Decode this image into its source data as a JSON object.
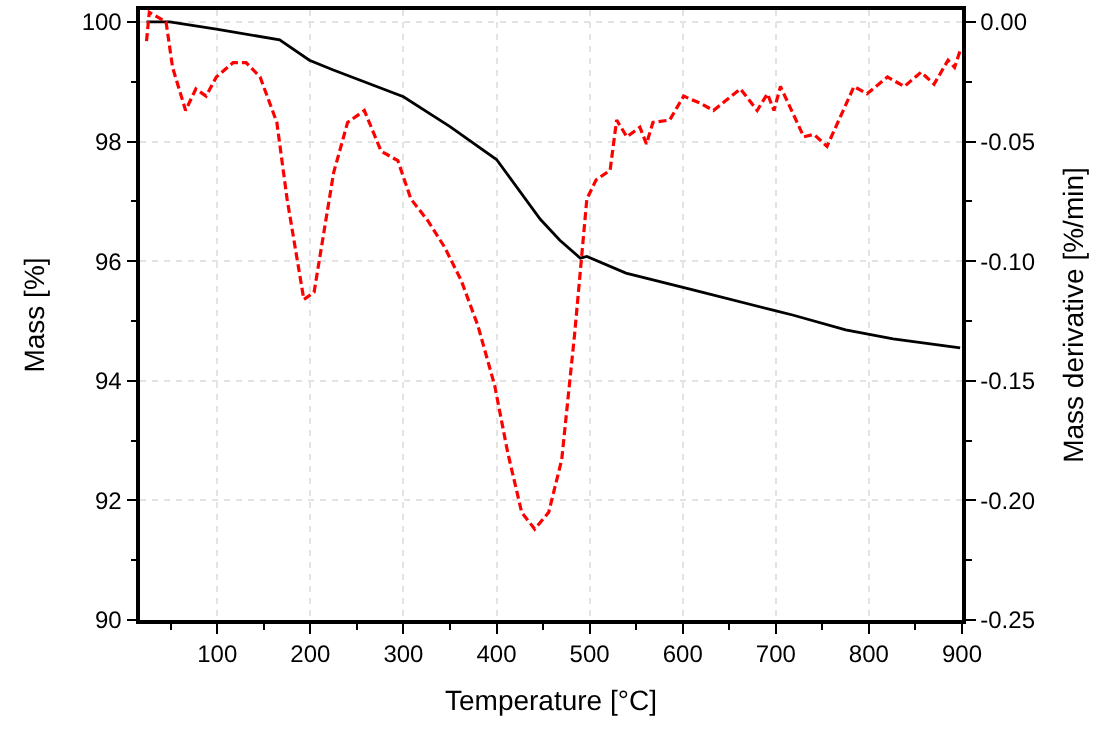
{
  "chart_data": {
    "type": "line",
    "xlabel": "Temperature [°C]",
    "ylabel": "Mass [%]",
    "y2label": "Mass derivative [%/min]",
    "xlim": [
      17,
      900
    ],
    "xticks": [
      {
        "value": 50,
        "label": null
      },
      100,
      {
        "value": 150,
        "label": null
      },
      200,
      {
        "value": 250,
        "label": null
      },
      300,
      {
        "value": 350,
        "label": null
      },
      400,
      {
        "value": 450,
        "label": null
      },
      500,
      {
        "value": 550,
        "label": null
      },
      600,
      {
        "value": 650,
        "label": null
      },
      700,
      {
        "value": 750,
        "label": null
      },
      800,
      {
        "value": 850,
        "label": null
      },
      900
    ],
    "ylim": [
      90,
      100.2
    ],
    "yticks": [
      90,
      {
        "value": 91,
        "label": null
      },
      92,
      {
        "value": 93,
        "label": null
      },
      94,
      {
        "value": 95,
        "label": null
      },
      96,
      {
        "value": 97,
        "label": null
      },
      98,
      {
        "value": 99,
        "label": null
      },
      100
    ],
    "y2lim": [
      -0.25,
      0.005
    ],
    "y2ticks": [
      {
        "value": -0.25,
        "label": "-0.25"
      },
      {
        "value": -0.225,
        "label": null
      },
      {
        "value": -0.2,
        "label": "-0.20"
      },
      {
        "value": -0.175,
        "label": null
      },
      {
        "value": -0.15,
        "label": "-0.15"
      },
      {
        "value": -0.125,
        "label": null
      },
      {
        "value": -0.1,
        "label": "-0.10"
      },
      {
        "value": -0.075,
        "label": null
      },
      {
        "value": -0.05,
        "label": "-0.05"
      },
      {
        "value": -0.025,
        "label": null
      },
      {
        "value": 0,
        "label": "0.00"
      }
    ],
    "grid": true,
    "marker": "none",
    "series": [
      {
        "color": "#000000",
        "line_style": "solid",
        "x": [
          24,
          49,
          99,
          167,
          199,
          224,
          300,
          350,
          400,
          447,
          468,
          490,
          497,
          539,
          611,
          697,
          718,
          775,
          826,
          898
        ],
        "values": [
          100,
          100,
          99.88,
          99.7,
          99.36,
          99.2,
          98.75,
          98.25,
          97.7,
          96.7,
          96.35,
          96.05,
          96.08,
          95.8,
          95.52,
          95.18,
          95.1,
          94.85,
          94.7,
          94.55
        ]
      },
      {
        "color": "#ff0000",
        "line_style": "dashed",
        "axis": "y2",
        "x": [
          24,
          27,
          45,
          52,
          66,
          77,
          88,
          99,
          117,
          131,
          146,
          164,
          175,
          193,
          204,
          225,
          240,
          258,
          276,
          294,
          308,
          326,
          344,
          362,
          380,
          398,
          412,
          427,
          441,
          456,
          470,
          484,
          497,
          507,
          522,
          529,
          540,
          554,
          561,
          568,
          586,
          601,
          619,
          633,
          662,
          680,
          691,
          698,
          705,
          730,
          741,
          755,
          784,
          798,
          820,
          838,
          856,
          870,
          885,
          892,
          898
        ],
        "values": [
          -0.008,
          0.004,
          0.0,
          -0.019,
          -0.037,
          -0.028,
          -0.031,
          -0.023,
          -0.017,
          -0.017,
          -0.023,
          -0.042,
          -0.074,
          -0.116,
          -0.113,
          -0.063,
          -0.042,
          -0.037,
          -0.054,
          -0.058,
          -0.074,
          -0.083,
          -0.094,
          -0.108,
          -0.127,
          -0.152,
          -0.18,
          -0.205,
          -0.212,
          -0.205,
          -0.183,
          -0.13,
          -0.074,
          -0.066,
          -0.062,
          -0.041,
          -0.048,
          -0.044,
          -0.051,
          -0.042,
          -0.041,
          -0.031,
          -0.034,
          -0.037,
          -0.028,
          -0.037,
          -0.03,
          -0.037,
          -0.027,
          -0.048,
          -0.047,
          -0.052,
          -0.027,
          -0.03,
          -0.023,
          -0.027,
          -0.021,
          -0.026,
          -0.016,
          -0.019,
          -0.012
        ]
      }
    ]
  }
}
